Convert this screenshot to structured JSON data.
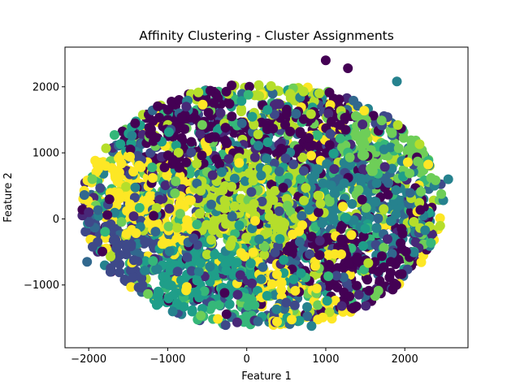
{
  "chart_data": {
    "type": "scatter",
    "title": "Affinity Clustering - Cluster Assignments",
    "xlabel": "Feature 1",
    "ylabel": "Feature 2",
    "xlim": [
      -2300,
      2800
    ],
    "ylim": [
      -1950,
      2600
    ],
    "xticks": [
      -2000,
      -1000,
      0,
      1000,
      2000
    ],
    "yticks": [
      -1000,
      0,
      1000,
      2000
    ],
    "tick_labels": {
      "x": [
        "−2000",
        "−1000",
        "0",
        "1000",
        "2000"
      ],
      "y": [
        "−1000",
        "0",
        "1000",
        "2000"
      ]
    },
    "grid": false,
    "legend": "none",
    "colormap": "viridis",
    "palette": [
      "#440154",
      "#482878",
      "#3e4989",
      "#31688e",
      "#26828e",
      "#1f9e89",
      "#35b779",
      "#6ece58",
      "#b5de2b",
      "#fde725"
    ],
    "cloud": {
      "center": [
        200,
        200
      ],
      "semi_axes": [
        2300,
        1850
      ],
      "point_count": 3200
    },
    "cluster_regions": [
      {
        "center": [
          -700,
          1300
        ],
        "color": "#440154"
      },
      {
        "center": [
          700,
          1600
        ],
        "color": "#440154"
      },
      {
        "center": [
          500,
          1900
        ],
        "color": "#b5de2b"
      },
      {
        "center": [
          1900,
          1000
        ],
        "color": "#6ece58"
      },
      {
        "center": [
          -1700,
          -500
        ],
        "color": "#3e4989"
      },
      {
        "center": [
          -600,
          -1100
        ],
        "color": "#1f9e89"
      },
      {
        "center": [
          600,
          -1400
        ],
        "color": "#fde725"
      },
      {
        "center": [
          1200,
          -700
        ],
        "color": "#440154"
      },
      {
        "center": [
          0,
          300
        ],
        "color": "#b5de2b"
      },
      {
        "center": [
          -1300,
          200
        ],
        "color": "#fde725"
      },
      {
        "center": [
          1500,
          300
        ],
        "color": "#26828e"
      },
      {
        "center": [
          -300,
          -1500
        ],
        "color": "#35b779"
      }
    ],
    "outliers": [
      {
        "x": 1000,
        "y": 2400,
        "color": "#440154"
      },
      {
        "x": 1280,
        "y": 2280,
        "color": "#440154"
      },
      {
        "x": 1900,
        "y": 2080,
        "color": "#26828e"
      },
      {
        "x": 2550,
        "y": 600,
        "color": "#26828e"
      },
      {
        "x": -2000,
        "y": 100,
        "color": "#482878"
      },
      {
        "x": -2020,
        "y": -650,
        "color": "#31688e"
      },
      {
        "x": 820,
        "y": -1620,
        "color": "#26828e"
      }
    ]
  }
}
